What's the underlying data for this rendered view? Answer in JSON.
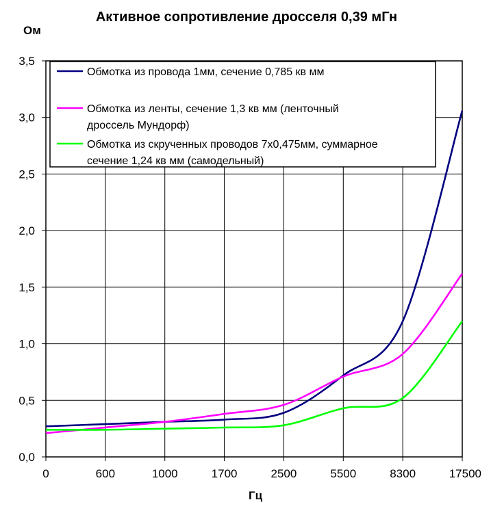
{
  "chart_data": {
    "type": "line",
    "title": "Активное сопротивление дросселя 0,39 мГн",
    "ylabel": "Ом",
    "xlabel": "Гц",
    "ylim": [
      0,
      3.5
    ],
    "y_ticks": [
      "0,0",
      "0,5",
      "1,0",
      "1,5",
      "2,0",
      "2,5",
      "3,0",
      "3,5"
    ],
    "categories": [
      "0",
      "600",
      "1000",
      "1700",
      "2500",
      "5500",
      "8300",
      "17500"
    ],
    "grid": true,
    "legend_position": "top-left inside plot",
    "series": [
      {
        "name": "Обмотка из провода 1мм, сечение 0,785 кв мм",
        "color": "#000080",
        "values": [
          0.27,
          0.29,
          0.31,
          0.33,
          0.39,
          0.72,
          1.2,
          3.06
        ]
      },
      {
        "name": "Обмотка из ленты, сечение 1,3 кв мм (ленточный дроссель Мундорф)",
        "color": "#ff00ff",
        "values": [
          0.21,
          0.26,
          0.31,
          0.38,
          0.46,
          0.71,
          0.91,
          1.62
        ]
      },
      {
        "name": "Обмотка из скрученных проводов 7х0,475мм, суммарное сечение 1,24 кв мм (самодельный)",
        "color": "#00ff00",
        "values": [
          0.24,
          0.24,
          0.25,
          0.26,
          0.28,
          0.43,
          0.52,
          1.2
        ]
      }
    ],
    "legend_lines": [
      [
        "Обмотка из провода 1мм, сечение 0,785 кв мм"
      ],
      [
        "Обмотка из ленты, сечение 1,3 кв мм (ленточный",
        "дроссель Мундорф)"
      ],
      [
        "Обмотка из скрученных проводов 7х0,475мм, суммарное",
        "сечение 1,24 кв мм (самодельный)"
      ]
    ]
  }
}
